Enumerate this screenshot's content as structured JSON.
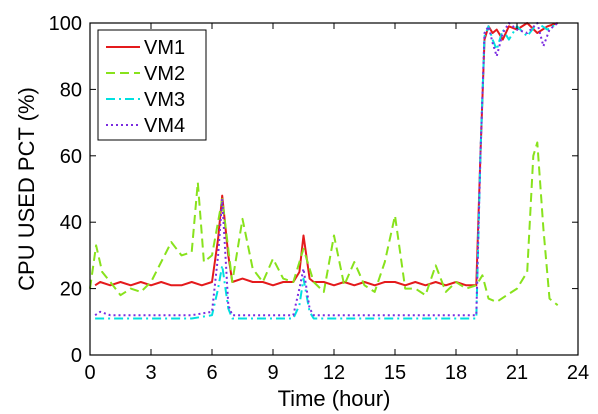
{
  "chart_data": {
    "type": "line",
    "title": "",
    "xlabel": "Time (hour)",
    "ylabel": "CPU USED PCT (%)",
    "xlim": [
      0,
      24
    ],
    "ylim": [
      0,
      100
    ],
    "xticks": [
      0,
      3,
      6,
      9,
      12,
      15,
      18,
      21,
      24
    ],
    "yticks": [
      0,
      20,
      40,
      60,
      80,
      100
    ],
    "grid": false,
    "legend_position": "top-left",
    "series": [
      {
        "name": "VM1",
        "color": "#e41a1c",
        "style": "solid",
        "x": [
          0.25,
          0.5,
          1,
          1.5,
          2,
          2.5,
          3,
          3.5,
          4,
          4.5,
          5,
          5.5,
          6,
          6.3,
          6.5,
          6.8,
          7,
          7.5,
          8,
          8.5,
          9,
          9.5,
          10,
          10.3,
          10.5,
          10.8,
          11,
          11.5,
          12,
          12.5,
          13,
          13.5,
          14,
          14.5,
          15,
          15.5,
          16,
          16.5,
          17,
          17.5,
          18,
          18.5,
          19,
          19.2,
          19.4,
          19.6,
          19.8,
          20,
          20.3,
          20.6,
          21,
          21.5,
          22,
          22.5,
          23
        ],
        "values": [
          21,
          22,
          21,
          22,
          21,
          22,
          21,
          22,
          21,
          21,
          22,
          21,
          22,
          35,
          48,
          30,
          22,
          23,
          22,
          22,
          21,
          22,
          22,
          25,
          36,
          23,
          22,
          22,
          21,
          22,
          21,
          22,
          21,
          22,
          22,
          21,
          22,
          21,
          22,
          21,
          22,
          21,
          21,
          60,
          95,
          99,
          97,
          98,
          95,
          99,
          98,
          100,
          97,
          99,
          100
        ]
      },
      {
        "name": "VM2",
        "color": "#88e21c",
        "style": "dashed",
        "x": [
          0,
          0.3,
          0.6,
          1,
          1.5,
          2,
          2.5,
          3,
          3.5,
          4,
          4.5,
          5,
          5.3,
          5.6,
          6,
          6.5,
          7,
          7.5,
          8,
          8.5,
          9,
          9.5,
          10,
          10.5,
          11,
          11.5,
          12,
          12.5,
          13,
          13.5,
          14,
          14.5,
          15,
          15.5,
          16,
          16.5,
          17,
          17.5,
          18,
          18.5,
          19,
          19.3,
          19.6,
          20,
          20.5,
          21,
          21.5,
          21.8,
          22,
          22.3,
          22.6,
          23
        ],
        "values": [
          20,
          33,
          25,
          22,
          18,
          20,
          19,
          22,
          28,
          34,
          30,
          31,
          52,
          28,
          30,
          47,
          22,
          41,
          26,
          22,
          29,
          23,
          22,
          32,
          22,
          19,
          36,
          21,
          28,
          21,
          19,
          28,
          42,
          20,
          20,
          18,
          27,
          19,
          22,
          20,
          21,
          24,
          17,
          16,
          18,
          20,
          25,
          60,
          64,
          38,
          17,
          15
        ]
      },
      {
        "name": "VM3",
        "color": "#00e0e0",
        "style": "dashdot",
        "x": [
          0.25,
          0.5,
          1,
          2,
          3,
          4,
          5,
          6,
          6.3,
          6.5,
          6.8,
          7,
          8,
          9,
          10,
          10.3,
          10.5,
          10.8,
          11,
          12,
          13,
          14,
          15,
          16,
          17,
          18,
          19,
          19.2,
          19.4,
          19.6,
          19.8,
          20,
          20.3,
          20.6,
          21,
          21.5,
          22,
          22.5,
          23
        ],
        "values": [
          11,
          11,
          11,
          11,
          11,
          11,
          11,
          12,
          20,
          27,
          14,
          11,
          11,
          11,
          11,
          15,
          23,
          13,
          11,
          11,
          11,
          11,
          11,
          11,
          11,
          11,
          11,
          60,
          96,
          99,
          95,
          92,
          98,
          95,
          99,
          96,
          100,
          98,
          100
        ]
      },
      {
        "name": "VM4",
        "color": "#7b2ce0",
        "style": "dotted",
        "x": [
          0.25,
          0.5,
          1,
          2,
          3,
          4,
          5,
          6,
          6.3,
          6.5,
          6.8,
          7,
          8,
          9,
          10,
          10.3,
          10.5,
          10.8,
          11,
          12,
          13,
          14,
          15,
          16,
          17,
          18,
          19,
          19.2,
          19.4,
          19.6,
          19.8,
          20,
          20.3,
          20.6,
          21,
          21.5,
          22,
          22.3,
          22.6,
          23
        ],
        "values": [
          12,
          13,
          12,
          12,
          12,
          12,
          12,
          13,
          30,
          47,
          15,
          12,
          12,
          12,
          12,
          20,
          26,
          14,
          12,
          12,
          12,
          12,
          12,
          12,
          12,
          12,
          12,
          60,
          97,
          99,
          94,
          90,
          97,
          100,
          98,
          97,
          100,
          93,
          98,
          100
        ]
      }
    ]
  }
}
